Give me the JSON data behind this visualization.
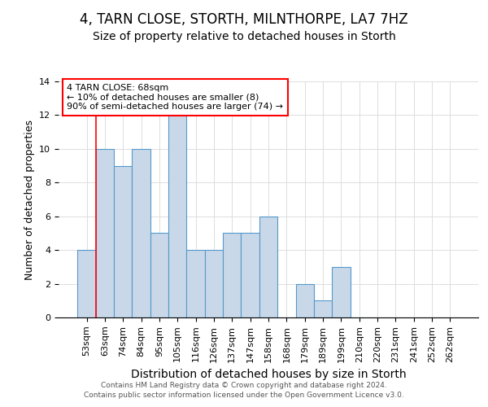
{
  "title": "4, TARN CLOSE, STORTH, MILNTHORPE, LA7 7HZ",
  "subtitle": "Size of property relative to detached houses in Storth",
  "xlabel": "Distribution of detached houses by size in Storth",
  "ylabel": "Number of detached properties",
  "bar_labels": [
    "53sqm",
    "63sqm",
    "74sqm",
    "84sqm",
    "95sqm",
    "105sqm",
    "116sqm",
    "126sqm",
    "137sqm",
    "147sqm",
    "158sqm",
    "168sqm",
    "179sqm",
    "189sqm",
    "199sqm",
    "210sqm",
    "220sqm",
    "231sqm",
    "241sqm",
    "252sqm",
    "262sqm"
  ],
  "bar_values": [
    4,
    10,
    9,
    10,
    5,
    12,
    4,
    4,
    5,
    5,
    6,
    0,
    2,
    1,
    3,
    0,
    0,
    0,
    0,
    0,
    0
  ],
  "ylim": [
    0,
    14
  ],
  "bar_color": "#c8d8e8",
  "bar_edge_color": "#5599cc",
  "annotation_box_text": "4 TARN CLOSE: 68sqm\n← 10% of detached houses are smaller (8)\n90% of semi-detached houses are larger (74) →",
  "annotation_box_color": "white",
  "annotation_box_edge_color": "red",
  "footer_line1": "Contains HM Land Registry data © Crown copyright and database right 2024.",
  "footer_line2": "Contains public sector information licensed under the Open Government Licence v3.0.",
  "grid_color": "#dddddd",
  "title_fontsize": 12,
  "subtitle_fontsize": 10,
  "tick_fontsize": 8,
  "ylabel_fontsize": 9,
  "xlabel_fontsize": 10,
  "annotation_fontsize": 8
}
